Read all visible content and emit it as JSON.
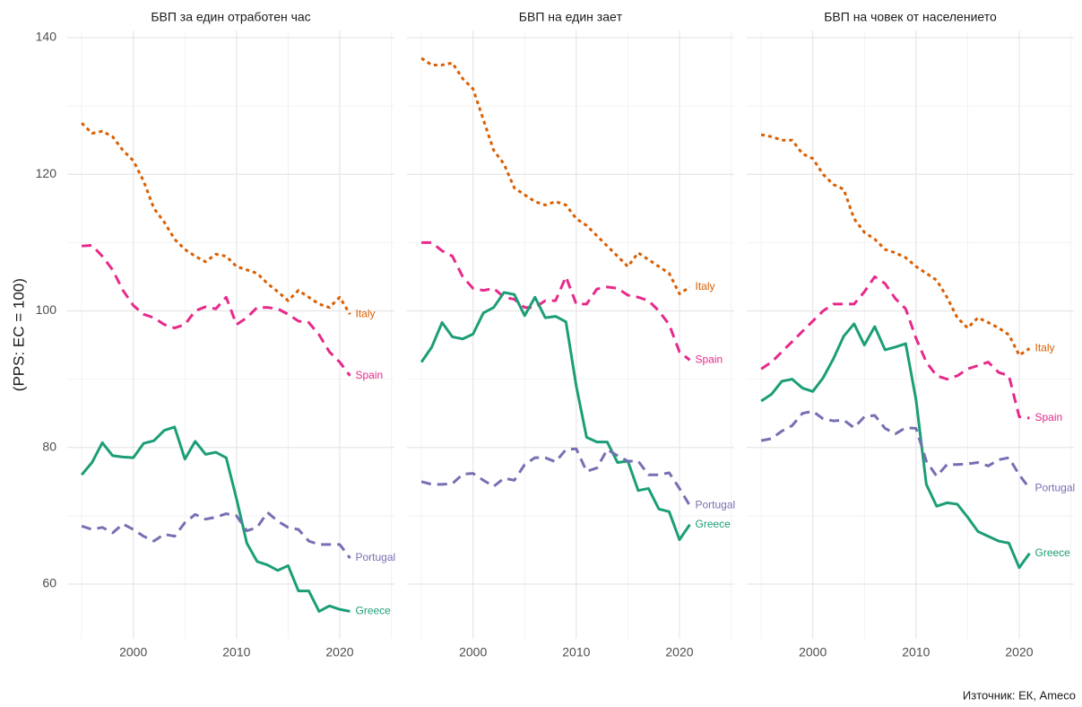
{
  "caption": "Източник: ЕК, Ameco",
  "chart_data": [
    {
      "type": "line",
      "title": "БВП за един отработен час",
      "y_label": "(PPS: EC = 100)",
      "x": [
        1995,
        1996,
        1997,
        1998,
        1999,
        2000,
        2001,
        2002,
        2003,
        2004,
        2005,
        2006,
        2007,
        2008,
        2009,
        2010,
        2011,
        2012,
        2013,
        2014,
        2015,
        2016,
        2017,
        2018,
        2019,
        2020,
        2021
      ],
      "xlim": [
        1993.6,
        2025.3
      ],
      "xticks": [
        2000,
        2010,
        2020
      ],
      "ylim": [
        52,
        141
      ],
      "yticks": [
        60,
        80,
        100,
        120,
        140
      ],
      "grid": true,
      "series": [
        {
          "name": "Italy",
          "color": "#d95f02",
          "linestyle": "dotted",
          "values": [
            127.5,
            126,
            126.3,
            125.5,
            123.5,
            122,
            119,
            115,
            113,
            110.5,
            109,
            108,
            107.2,
            108.3,
            108,
            106.5,
            106,
            105.5,
            104,
            102.8,
            101.5,
            103,
            102,
            101,
            100.5,
            102,
            99.5
          ]
        },
        {
          "name": "Spain",
          "color": "#e7298a",
          "linestyle": "dashed",
          "values": [
            109.5,
            109.6,
            108,
            106,
            103,
            100.8,
            99.5,
            99,
            98,
            97.5,
            98,
            100,
            100.6,
            100.3,
            102,
            98,
            99,
            100.5,
            100.5,
            100.3,
            99.5,
            98.5,
            98.3,
            96.5,
            94,
            92.5,
            90.5
          ]
        },
        {
          "name": "Greece",
          "color": "#1b9e77",
          "linestyle": "solid",
          "values": [
            76,
            77.8,
            80.7,
            78.8,
            78.6,
            78.5,
            80.6,
            81,
            82.5,
            83,
            78.3,
            80.9,
            79,
            79.3,
            78.5,
            72.5,
            66,
            63.3,
            62.8,
            62,
            62.7,
            59,
            59,
            56,
            56.8,
            56.3,
            56
          ]
        },
        {
          "name": "Portugal",
          "color": "#7570b3",
          "linestyle": "dashed",
          "values": [
            68.5,
            68,
            68.3,
            67.5,
            68.8,
            68,
            67,
            66.3,
            67.3,
            67,
            69,
            70.2,
            69.5,
            69.8,
            70.3,
            70,
            67.8,
            68.3,
            70.5,
            69.2,
            68.3,
            68,
            66.3,
            65.8,
            65.8,
            65.8,
            63.8
          ]
        }
      ]
    },
    {
      "type": "line",
      "title": "БВП на един заeт",
      "x": [
        1995,
        1996,
        1997,
        1998,
        1999,
        2000,
        2001,
        2002,
        2003,
        2004,
        2005,
        2006,
        2007,
        2008,
        2009,
        2010,
        2011,
        2012,
        2013,
        2014,
        2015,
        2016,
        2017,
        2018,
        2019,
        2020,
        2021
      ],
      "xlim": [
        1993.6,
        2025.3
      ],
      "xticks": [
        2000,
        2010,
        2020
      ],
      "ylim": [
        52,
        141
      ],
      "yticks": [
        60,
        80,
        100,
        120,
        140
      ],
      "grid": true,
      "series": [
        {
          "name": "Italy",
          "color": "#d95f02",
          "linestyle": "dotted",
          "values": [
            137,
            136,
            136,
            136.3,
            134,
            132.5,
            128,
            123.5,
            121.5,
            118,
            117,
            116,
            115.5,
            116,
            115.5,
            113.5,
            112.5,
            111,
            109.5,
            108,
            106.5,
            108.5,
            107.5,
            106.5,
            105.5,
            102.5,
            103.5
          ]
        },
        {
          "name": "Spain",
          "color": "#e7298a",
          "linestyle": "dashed",
          "values": [
            110,
            110,
            108.8,
            108,
            105,
            103.3,
            103,
            103.3,
            102,
            101.7,
            100.5,
            100.5,
            101.5,
            101.5,
            105,
            101,
            101,
            103.2,
            103.5,
            103.3,
            102.3,
            102,
            101.5,
            100,
            98,
            94,
            92.8
          ]
        },
        {
          "name": "Greece",
          "color": "#1b9e77",
          "linestyle": "solid",
          "values": [
            92.5,
            94.7,
            98.3,
            96.2,
            95.9,
            96.6,
            99.7,
            100.5,
            102.7,
            102.4,
            99.3,
            102,
            99,
            99.2,
            98.4,
            89,
            81.5,
            80.8,
            80.8,
            77.8,
            78,
            73.7,
            74,
            71,
            70.6,
            66.5,
            68.7
          ]
        },
        {
          "name": "Portugal",
          "color": "#7570b3",
          "linestyle": "dashed",
          "values": [
            75,
            74.6,
            74.6,
            74.7,
            76.1,
            76.2,
            75.2,
            74.3,
            75.5,
            75.2,
            77.5,
            78.5,
            78.5,
            77.9,
            79.7,
            79.8,
            76.5,
            77,
            79.7,
            78.8,
            78,
            78,
            76,
            76,
            76.3,
            74,
            71.5
          ]
        }
      ]
    },
    {
      "type": "line",
      "title": "БВП на човек от населението",
      "x": [
        1995,
        1996,
        1997,
        1998,
        1999,
        2000,
        2001,
        2002,
        2003,
        2004,
        2005,
        2006,
        2007,
        2008,
        2009,
        2010,
        2011,
        2012,
        2013,
        2014,
        2015,
        2016,
        2017,
        2018,
        2019,
        2020,
        2021
      ],
      "xlim": [
        1993.6,
        2025.3
      ],
      "xticks": [
        2000,
        2010,
        2020
      ],
      "ylim": [
        52,
        141
      ],
      "yticks": [
        60,
        80,
        100,
        120,
        140
      ],
      "grid": true,
      "series": [
        {
          "name": "Italy",
          "color": "#d95f02",
          "linestyle": "dotted",
          "values": [
            125.8,
            125.5,
            125,
            125,
            123,
            122.3,
            120,
            118.5,
            117.8,
            113.5,
            111.5,
            110.5,
            109,
            108.5,
            107.8,
            106.5,
            105.5,
            104.5,
            102,
            99,
            97.5,
            99,
            98.3,
            97.5,
            96.5,
            93.5,
            94.5
          ]
        },
        {
          "name": "Spain",
          "color": "#e7298a",
          "linestyle": "dashed",
          "values": [
            91.5,
            92.5,
            94,
            95.5,
            97,
            98.5,
            100,
            101,
            101,
            101,
            102.8,
            105,
            104,
            101.8,
            100.3,
            96,
            92.5,
            90.5,
            90,
            90.5,
            91.5,
            92,
            92.5,
            91,
            90.5,
            84.5,
            84.3
          ]
        },
        {
          "name": "Greece",
          "color": "#1b9e77",
          "linestyle": "solid",
          "values": [
            86.8,
            87.8,
            89.7,
            90,
            88.7,
            88.2,
            90.2,
            93,
            96.3,
            98.1,
            95,
            97.7,
            94.3,
            94.7,
            95.2,
            87,
            74.6,
            71.4,
            71.9,
            71.7,
            69.8,
            67.7,
            67,
            66.3,
            66,
            62.4,
            64.5
          ]
        },
        {
          "name": "Portugal",
          "color": "#7570b3",
          "linestyle": "dashed",
          "values": [
            81,
            81.3,
            82.4,
            83.2,
            85,
            85.3,
            84.2,
            83.9,
            84,
            82.9,
            84.5,
            84.7,
            82.8,
            82,
            82.9,
            82.8,
            78,
            75.8,
            77.5,
            77.5,
            77.6,
            77.8,
            77.3,
            78.2,
            78.5,
            76,
            74
          ]
        }
      ]
    }
  ]
}
